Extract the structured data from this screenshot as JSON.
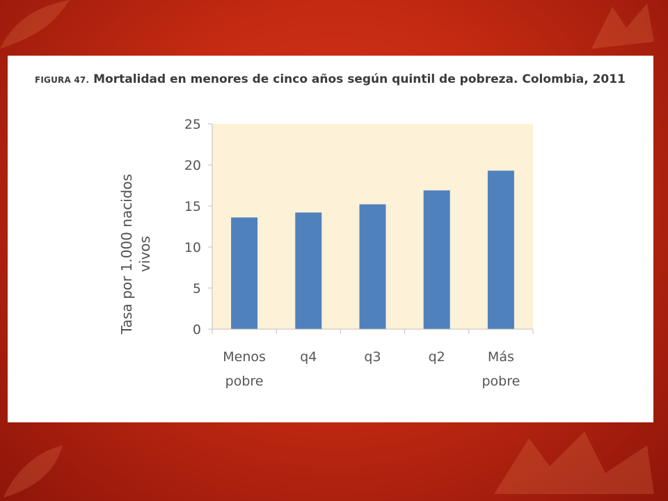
{
  "colors": {
    "background": "#c42a12",
    "panel": "#ffffff",
    "plot_area": "#fdf1d8",
    "bar": "#4f81bd",
    "axis": "#bfbfbf",
    "text": "#555555"
  },
  "figure": {
    "title_lead": "FIGURA 47.",
    "title_text": "Mortalidad en menores de cinco años según quintil de pobreza. Colombia, 2011"
  },
  "chart_data": {
    "type": "bar",
    "title": "FIGURA 47. Mortalidad en menores de cinco años según quintil de pobreza. Colombia, 2011",
    "categories": [
      [
        "Menos",
        "pobre"
      ],
      [
        "q4"
      ],
      [
        "q3"
      ],
      [
        "q2"
      ],
      [
        "Más",
        "pobre"
      ]
    ],
    "values": [
      13.6,
      14.2,
      15.2,
      16.9,
      19.3
    ],
    "ylabel_lines": [
      "Tasa por 1.000 nacidos",
      "vivos"
    ],
    "xlabel": "",
    "ylim": [
      0,
      25
    ],
    "yticks": [
      0,
      5,
      10,
      15,
      20,
      25
    ],
    "grid": false,
    "legend": "none"
  }
}
